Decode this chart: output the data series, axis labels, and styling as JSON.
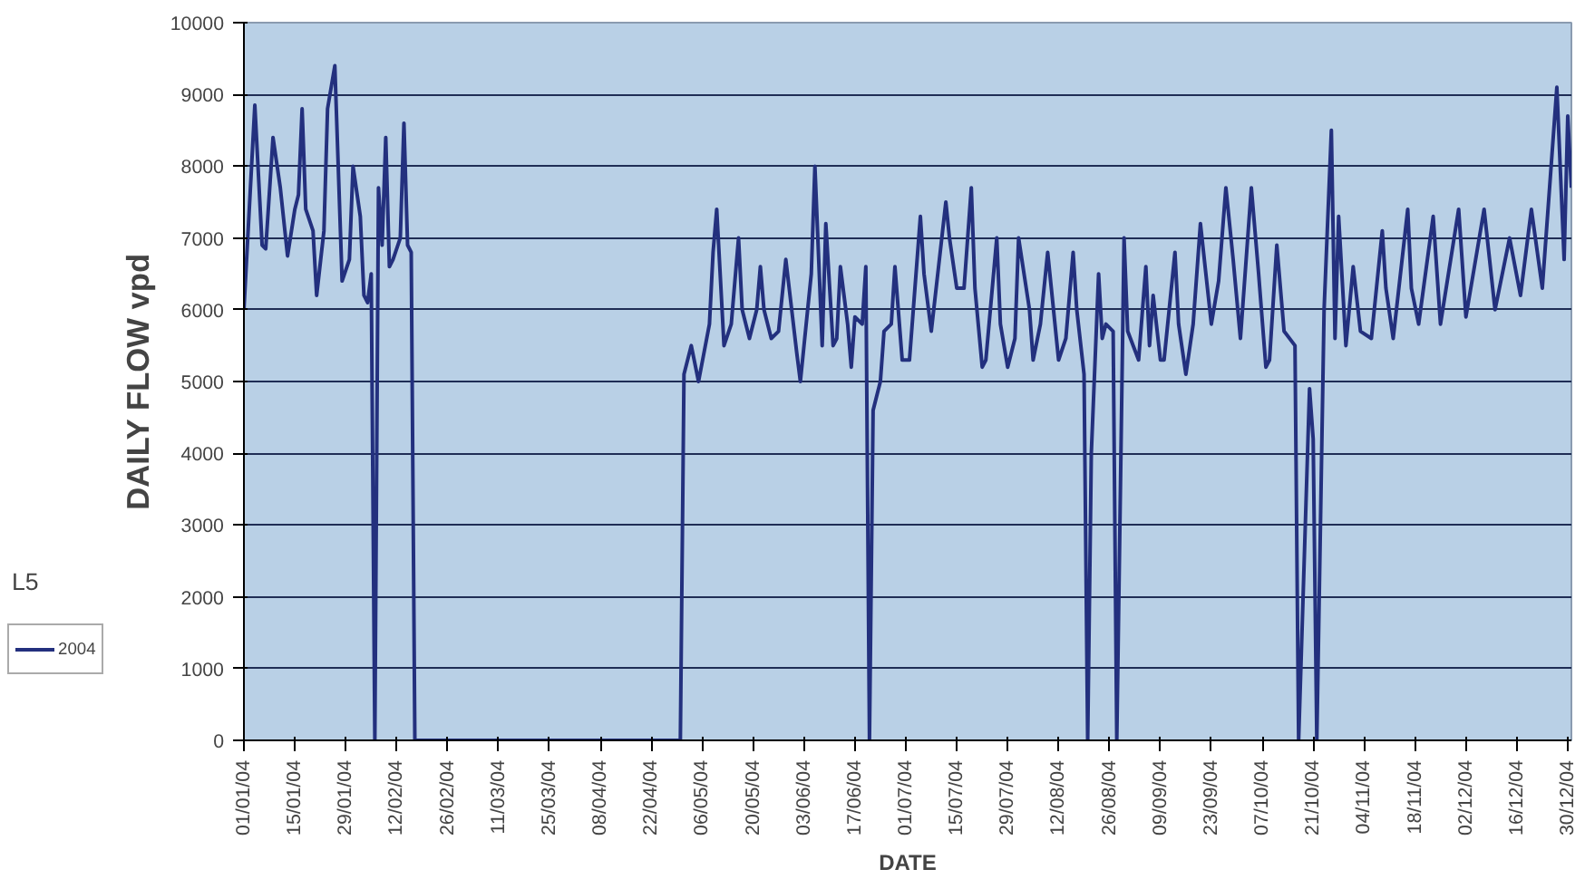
{
  "chart_data": {
    "type": "line",
    "xlabel": "DATE",
    "ylabel": "DAILY FLOW vpd",
    "annotations": [
      "L5"
    ],
    "xlim": [
      "2004-01-01",
      "2004-12-31"
    ],
    "ylim": [
      0,
      10000
    ],
    "yticks": [
      0,
      1000,
      2000,
      3000,
      4000,
      5000,
      6000,
      7000,
      8000,
      9000,
      10000
    ],
    "xticks": [
      {
        "value": "2004-01-01",
        "label": "01/01/04"
      },
      {
        "value": "2004-01-15",
        "label": "15/01/04"
      },
      {
        "value": "2004-01-29",
        "label": "29/01/04"
      },
      {
        "value": "2004-02-12",
        "label": "12/02/04"
      },
      {
        "value": "2004-02-26",
        "label": "26/02/04"
      },
      {
        "value": "2004-03-11",
        "label": "11/03/04"
      },
      {
        "value": "2004-03-25",
        "label": "25/03/04"
      },
      {
        "value": "2004-04-08",
        "label": "08/04/04"
      },
      {
        "value": "2004-04-22",
        "label": "22/04/04"
      },
      {
        "value": "2004-05-06",
        "label": "06/05/04"
      },
      {
        "value": "2004-05-20",
        "label": "20/05/04"
      },
      {
        "value": "2004-06-03",
        "label": "03/06/04"
      },
      {
        "value": "2004-06-17",
        "label": "17/06/04"
      },
      {
        "value": "2004-07-01",
        "label": "01/07/04"
      },
      {
        "value": "2004-07-15",
        "label": "15/07/04"
      },
      {
        "value": "2004-07-29",
        "label": "29/07/04"
      },
      {
        "value": "2004-08-12",
        "label": "12/08/04"
      },
      {
        "value": "2004-08-26",
        "label": "26/08/04"
      },
      {
        "value": "2004-09-09",
        "label": "09/09/04"
      },
      {
        "value": "2004-09-23",
        "label": "23/09/04"
      },
      {
        "value": "2004-10-07",
        "label": "07/10/04"
      },
      {
        "value": "2004-10-21",
        "label": "21/10/04"
      },
      {
        "value": "2004-11-04",
        "label": "04/11/04"
      },
      {
        "value": "2004-11-18",
        "label": "18/11/04"
      },
      {
        "value": "2004-12-02",
        "label": "02/12/04"
      },
      {
        "value": "2004-12-16",
        "label": "16/12/04"
      },
      {
        "value": "2004-12-30",
        "label": "30/12/04"
      }
    ],
    "grid": "y",
    "legend": "bottom left",
    "marker": "none",
    "line_style": "solid",
    "x": [
      "2004-01-01",
      "2004-01-04",
      "2004-01-06",
      "2004-01-07",
      "2004-01-09",
      "2004-01-11",
      "2004-01-13",
      "2004-01-15",
      "2004-01-16",
      "2004-01-17",
      "2004-01-18",
      "2004-01-20",
      "2004-01-21",
      "2004-01-23",
      "2004-01-24",
      "2004-01-26",
      "2004-01-28",
      "2004-01-30",
      "2004-01-31",
      "2004-02-02",
      "2004-02-03",
      "2004-02-04",
      "2004-02-05",
      "2004-02-06",
      "2004-02-07",
      "2004-02-08",
      "2004-02-09",
      "2004-02-10",
      "2004-02-11",
      "2004-02-13",
      "2004-02-14",
      "2004-02-15",
      "2004-02-16",
      "2004-02-17",
      "2004-04-30",
      "2004-05-01",
      "2004-05-03",
      "2004-05-05",
      "2004-05-08",
      "2004-05-09",
      "2004-05-10",
      "2004-05-12",
      "2004-05-14",
      "2004-05-16",
      "2004-05-17",
      "2004-05-19",
      "2004-05-21",
      "2004-05-22",
      "2004-05-23",
      "2004-05-25",
      "2004-05-27",
      "2004-05-29",
      "2004-06-01",
      "2004-06-02",
      "2004-06-03",
      "2004-06-05",
      "2004-06-06",
      "2004-06-08",
      "2004-06-09",
      "2004-06-11",
      "2004-06-12",
      "2004-06-13",
      "2004-06-15",
      "2004-06-16",
      "2004-06-17",
      "2004-06-19",
      "2004-06-20",
      "2004-06-21",
      "2004-06-22",
      "2004-06-24",
      "2004-06-25",
      "2004-06-27",
      "2004-06-28",
      "2004-06-30",
      "2004-07-02",
      "2004-07-05",
      "2004-07-06",
      "2004-07-08",
      "2004-07-10",
      "2004-07-12",
      "2004-07-13",
      "2004-07-15",
      "2004-07-17",
      "2004-07-19",
      "2004-07-20",
      "2004-07-22",
      "2004-07-23",
      "2004-07-26",
      "2004-07-27",
      "2004-07-29",
      "2004-07-31",
      "2004-08-01",
      "2004-08-04",
      "2004-08-05",
      "2004-08-07",
      "2004-08-09",
      "2004-08-10",
      "2004-08-12",
      "2004-08-14",
      "2004-08-16",
      "2004-08-17",
      "2004-08-19",
      "2004-08-20",
      "2004-08-21",
      "2004-08-23",
      "2004-08-24",
      "2004-08-25",
      "2004-08-27",
      "2004-08-28",
      "2004-08-30",
      "2004-08-31",
      "2004-09-03",
      "2004-09-05",
      "2004-09-06",
      "2004-09-07",
      "2004-09-09",
      "2004-09-10",
      "2004-09-13",
      "2004-09-14",
      "2004-09-16",
      "2004-09-18",
      "2004-09-20",
      "2004-09-23",
      "2004-09-25",
      "2004-09-27",
      "2004-09-29",
      "2004-10-01",
      "2004-10-04",
      "2004-10-06",
      "2004-10-08",
      "2004-10-09",
      "2004-10-11",
      "2004-10-13",
      "2004-10-16",
      "2004-10-17",
      "2004-10-20",
      "2004-10-21",
      "2004-10-22",
      "2004-10-24",
      "2004-10-26",
      "2004-10-27",
      "2004-10-28",
      "2004-10-30",
      "2004-11-01",
      "2004-11-03",
      "2004-11-06",
      "2004-11-09",
      "2004-11-10",
      "2004-11-12",
      "2004-11-16",
      "2004-11-17",
      "2004-11-19",
      "2004-11-23",
      "2004-11-25",
      "2004-11-30",
      "2004-12-02",
      "2004-12-07",
      "2004-12-10",
      "2004-12-14",
      "2004-12-17",
      "2004-12-20",
      "2004-12-23",
      "2004-12-24",
      "2004-12-27",
      "2004-12-29",
      "2004-12-30",
      "2004-12-31"
    ],
    "series": [
      {
        "name": "2004",
        "color": "#23307e",
        "values": [
          6000,
          8850,
          6900,
          6850,
          8400,
          7700,
          6750,
          7400,
          7600,
          8800,
          7400,
          7100,
          6200,
          7100,
          8800,
          9400,
          6400,
          6700,
          8000,
          7300,
          6200,
          6100,
          6500,
          0,
          7700,
          6900,
          8400,
          6600,
          6700,
          7000,
          8600,
          6900,
          6800,
          0,
          0,
          5100,
          5500,
          5000,
          5800,
          6800,
          7400,
          5500,
          5800,
          7000,
          6000,
          5600,
          6000,
          6600,
          6000,
          5600,
          5700,
          6700,
          5400,
          5000,
          5500,
          6500,
          8000,
          5500,
          7200,
          5500,
          5600,
          6600,
          5800,
          5200,
          5900,
          5800,
          6600,
          0,
          4600,
          5000,
          5700,
          5800,
          6600,
          5300,
          5300,
          7300,
          6500,
          5700,
          6600,
          7500,
          7000,
          6300,
          6300,
          7700,
          6300,
          5200,
          5300,
          7000,
          5800,
          5200,
          5600,
          7000,
          6000,
          5300,
          5800,
          6800,
          6300,
          5300,
          5600,
          6800,
          6000,
          5100,
          0,
          4000,
          6500,
          5600,
          5800,
          5700,
          0,
          7000,
          5700,
          5300,
          6600,
          5500,
          6200,
          5300,
          5300,
          6800,
          5800,
          5100,
          5800,
          7200,
          5800,
          6400,
          7700,
          6700,
          5600,
          7700,
          6500,
          5200,
          5300,
          6900,
          5700,
          5500,
          0,
          4900,
          4200,
          0,
          6000,
          8500,
          5600,
          7300,
          5500,
          6600,
          5700,
          5600,
          7100,
          6300,
          5600,
          7400,
          6300,
          5800,
          7300,
          5800,
          7400,
          5900,
          7400,
          6000,
          7000,
          6200,
          7400,
          6300,
          7000,
          9100,
          6700,
          8700,
          7700
        ]
      }
    ]
  }
}
